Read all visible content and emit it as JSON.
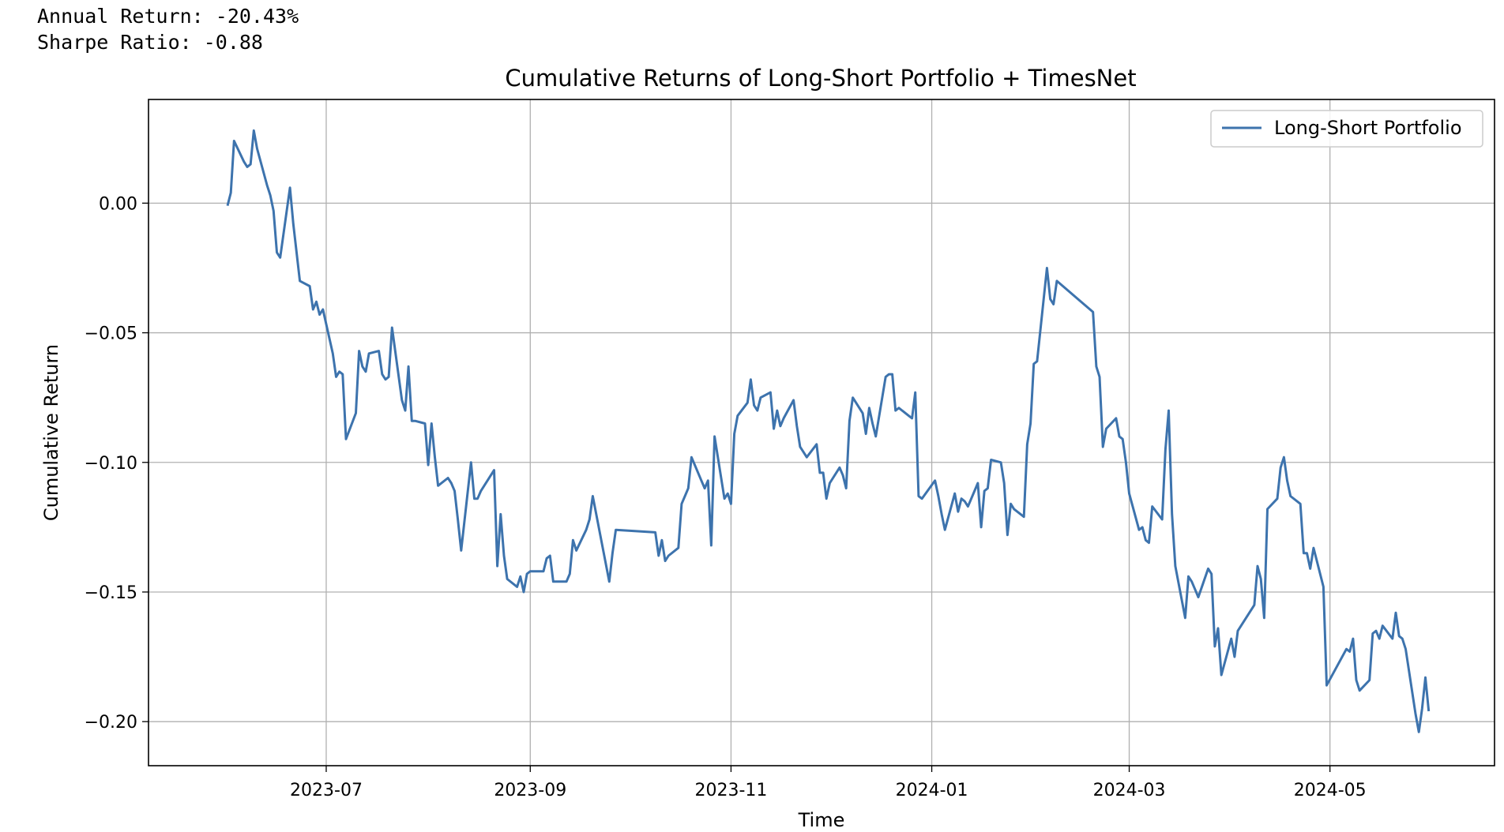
{
  "stats": {
    "annual_return": "Annual Return: -20.43%",
    "sharpe_ratio": "Sharpe Ratio: -0.88"
  },
  "chart_data": {
    "type": "line",
    "title": "Cumulative Returns of Long-Short Portfolio + TimesNet",
    "xlabel": "Time",
    "ylabel": "Cumulative Return",
    "xlim": [
      "2023-05-08",
      "2024-06-20"
    ],
    "ylim": [
      -0.217,
      0.04
    ],
    "x_ticks": [
      "2023-07",
      "2023-09",
      "2023-11",
      "2024-01",
      "2024-03",
      "2024-05"
    ],
    "y_ticks": [
      0.0,
      -0.05,
      -0.1,
      -0.15,
      -0.2
    ],
    "y_tick_labels": [
      "0.00",
      "−0.05",
      "−0.10",
      "−0.15",
      "−0.20"
    ],
    "grid": true,
    "legend_position": "top-right",
    "line_color": "#3d73ad",
    "series": [
      {
        "name": "Long-Short Portfolio",
        "x": [
          "2023-06-01",
          "2023-06-02",
          "2023-06-03",
          "2023-06-06",
          "2023-06-07",
          "2023-06-08",
          "2023-06-09",
          "2023-06-10",
          "2023-06-13",
          "2023-06-14",
          "2023-06-15",
          "2023-06-16",
          "2023-06-17",
          "2023-06-20",
          "2023-06-21",
          "2023-06-23",
          "2023-06-26",
          "2023-06-27",
          "2023-06-28",
          "2023-06-29",
          "2023-06-30",
          "2023-07-03",
          "2023-07-04",
          "2023-07-05",
          "2023-07-06",
          "2023-07-07",
          "2023-07-10",
          "2023-07-11",
          "2023-07-12",
          "2023-07-13",
          "2023-07-14",
          "2023-07-17",
          "2023-07-18",
          "2023-07-19",
          "2023-07-20",
          "2023-07-21",
          "2023-07-24",
          "2023-07-25",
          "2023-07-26",
          "2023-07-27",
          "2023-07-28",
          "2023-07-31",
          "2023-08-01",
          "2023-08-02",
          "2023-08-03",
          "2023-08-04",
          "2023-08-07",
          "2023-08-08",
          "2023-08-09",
          "2023-08-10",
          "2023-08-11",
          "2023-08-14",
          "2023-08-15",
          "2023-08-16",
          "2023-08-17",
          "2023-08-21",
          "2023-08-22",
          "2023-08-23",
          "2023-08-24",
          "2023-08-25",
          "2023-08-28",
          "2023-08-29",
          "2023-08-30",
          "2023-08-31",
          "2023-09-01",
          "2023-09-05",
          "2023-09-06",
          "2023-09-07",
          "2023-09-08",
          "2023-09-11",
          "2023-09-12",
          "2023-09-13",
          "2023-09-14",
          "2023-09-15",
          "2023-09-18",
          "2023-09-19",
          "2023-09-20",
          "2023-09-25",
          "2023-09-26",
          "2023-09-27",
          "2023-10-09",
          "2023-10-10",
          "2023-10-11",
          "2023-10-12",
          "2023-10-13",
          "2023-10-16",
          "2023-10-17",
          "2023-10-18",
          "2023-10-19",
          "2023-10-20",
          "2023-10-23",
          "2023-10-24",
          "2023-10-25",
          "2023-10-26",
          "2023-10-27",
          "2023-10-30",
          "2023-10-31",
          "2023-11-01",
          "2023-11-02",
          "2023-11-03",
          "2023-11-06",
          "2023-11-07",
          "2023-11-08",
          "2023-11-09",
          "2023-11-10",
          "2023-11-13",
          "2023-11-14",
          "2023-11-15",
          "2023-11-16",
          "2023-11-17",
          "2023-11-20",
          "2023-11-21",
          "2023-11-22",
          "2023-11-23",
          "2023-11-24",
          "2023-11-27",
          "2023-11-28",
          "2023-11-29",
          "2023-11-30",
          "2023-12-01",
          "2023-12-04",
          "2023-12-05",
          "2023-12-06",
          "2023-12-07",
          "2023-12-08",
          "2023-12-11",
          "2023-12-12",
          "2023-12-13",
          "2023-12-14",
          "2023-12-15",
          "2023-12-18",
          "2023-12-19",
          "2023-12-20",
          "2023-12-21",
          "2023-12-22",
          "2023-12-25",
          "2023-12-26",
          "2023-12-27",
          "2023-12-28",
          "2023-12-29",
          "2024-01-02",
          "2024-01-03",
          "2024-01-04",
          "2024-01-05",
          "2024-01-08",
          "2024-01-09",
          "2024-01-10",
          "2024-01-11",
          "2024-01-12",
          "2024-01-15",
          "2024-01-16",
          "2024-01-17",
          "2024-01-18",
          "2024-01-19",
          "2024-01-22",
          "2024-01-23",
          "2024-01-24",
          "2024-01-25",
          "2024-01-26",
          "2024-01-29",
          "2024-01-30",
          "2024-01-31",
          "2024-02-01",
          "2024-02-02",
          "2024-02-05",
          "2024-02-06",
          "2024-02-07",
          "2024-02-08",
          "2024-02-19",
          "2024-02-20",
          "2024-02-21",
          "2024-02-22",
          "2024-02-23",
          "2024-02-26",
          "2024-02-27",
          "2024-02-28",
          "2024-02-29",
          "2024-03-01",
          "2024-03-04",
          "2024-03-05",
          "2024-03-06",
          "2024-03-07",
          "2024-03-08",
          "2024-03-11",
          "2024-03-12",
          "2024-03-13",
          "2024-03-14",
          "2024-03-15",
          "2024-03-18",
          "2024-03-19",
          "2024-03-20",
          "2024-03-21",
          "2024-03-22",
          "2024-03-25",
          "2024-03-26",
          "2024-03-27",
          "2024-03-28",
          "2024-03-29",
          "2024-04-01",
          "2024-04-02",
          "2024-04-03",
          "2024-04-08",
          "2024-04-09",
          "2024-04-10",
          "2024-04-11",
          "2024-04-12",
          "2024-04-15",
          "2024-04-16",
          "2024-04-17",
          "2024-04-18",
          "2024-04-19",
          "2024-04-22",
          "2024-04-23",
          "2024-04-24",
          "2024-04-25",
          "2024-04-26",
          "2024-04-29",
          "2024-04-30",
          "2024-05-06",
          "2024-05-07",
          "2024-05-08",
          "2024-05-09",
          "2024-05-10",
          "2024-05-13",
          "2024-05-14",
          "2024-05-15",
          "2024-05-16",
          "2024-05-17",
          "2024-05-20",
          "2024-05-21",
          "2024-05-22",
          "2024-05-23",
          "2024-05-24",
          "2024-05-27",
          "2024-05-28",
          "2024-05-29",
          "2024-05-30",
          "2024-05-31"
        ],
        "y": [
          -0.001,
          0.004,
          0.024,
          0.016,
          0.014,
          0.015,
          0.028,
          0.021,
          0.007,
          0.003,
          -0.003,
          -0.019,
          -0.021,
          0.006,
          -0.008,
          -0.03,
          -0.032,
          -0.041,
          -0.038,
          -0.043,
          -0.041,
          -0.058,
          -0.067,
          -0.065,
          -0.066,
          -0.091,
          -0.081,
          -0.057,
          -0.063,
          -0.065,
          -0.058,
          -0.057,
          -0.066,
          -0.068,
          -0.067,
          -0.048,
          -0.076,
          -0.08,
          -0.063,
          -0.084,
          -0.084,
          -0.085,
          -0.101,
          -0.085,
          -0.098,
          -0.109,
          -0.106,
          -0.108,
          -0.111,
          -0.122,
          -0.134,
          -0.1,
          -0.114,
          -0.114,
          -0.111,
          -0.103,
          -0.14,
          -0.12,
          -0.136,
          -0.145,
          -0.148,
          -0.144,
          -0.15,
          -0.143,
          -0.142,
          -0.142,
          -0.137,
          -0.136,
          -0.146,
          -0.146,
          -0.146,
          -0.143,
          -0.13,
          -0.134,
          -0.126,
          -0.122,
          -0.113,
          -0.146,
          -0.135,
          -0.126,
          -0.127,
          -0.136,
          -0.13,
          -0.138,
          -0.136,
          -0.133,
          -0.116,
          -0.113,
          -0.11,
          -0.098,
          -0.107,
          -0.11,
          -0.107,
          -0.132,
          -0.09,
          -0.114,
          -0.112,
          -0.116,
          -0.089,
          -0.082,
          -0.077,
          -0.068,
          -0.078,
          -0.08,
          -0.075,
          -0.073,
          -0.087,
          -0.08,
          -0.086,
          -0.083,
          -0.076,
          -0.086,
          -0.094,
          -0.096,
          -0.098,
          -0.093,
          -0.104,
          -0.104,
          -0.114,
          -0.108,
          -0.102,
          -0.105,
          -0.11,
          -0.084,
          -0.075,
          -0.081,
          -0.089,
          -0.079,
          -0.085,
          -0.09,
          -0.067,
          -0.066,
          -0.066,
          -0.08,
          -0.079,
          -0.082,
          -0.083,
          -0.073,
          -0.113,
          -0.114,
          -0.107,
          -0.113,
          -0.12,
          -0.126,
          -0.112,
          -0.119,
          -0.114,
          -0.115,
          -0.117,
          -0.108,
          -0.125,
          -0.111,
          -0.11,
          -0.099,
          -0.1,
          -0.108,
          -0.128,
          -0.116,
          -0.118,
          -0.121,
          -0.093,
          -0.085,
          -0.062,
          -0.061,
          -0.025,
          -0.037,
          -0.039,
          -0.03,
          -0.042,
          -0.063,
          -0.067,
          -0.094,
          -0.087,
          -0.083,
          -0.09,
          -0.091,
          -0.1,
          -0.112,
          -0.126,
          -0.125,
          -0.13,
          -0.131,
          -0.117,
          -0.122,
          -0.095,
          -0.08,
          -0.12,
          -0.14,
          -0.16,
          -0.144,
          -0.146,
          -0.149,
          -0.152,
          -0.141,
          -0.143,
          -0.171,
          -0.164,
          -0.182,
          -0.168,
          -0.175,
          -0.165,
          -0.155,
          -0.14,
          -0.145,
          -0.16,
          -0.118,
          -0.114,
          -0.102,
          -0.098,
          -0.107,
          -0.113,
          -0.116,
          -0.135,
          -0.135,
          -0.141,
          -0.133,
          -0.148,
          -0.186,
          -0.172,
          -0.173,
          -0.168,
          -0.184,
          -0.188,
          -0.184,
          -0.166,
          -0.165,
          -0.168,
          -0.163,
          -0.168,
          -0.158,
          -0.167,
          -0.168,
          -0.172,
          -0.197,
          -0.204,
          -0.195,
          -0.183,
          -0.196
        ]
      }
    ]
  }
}
